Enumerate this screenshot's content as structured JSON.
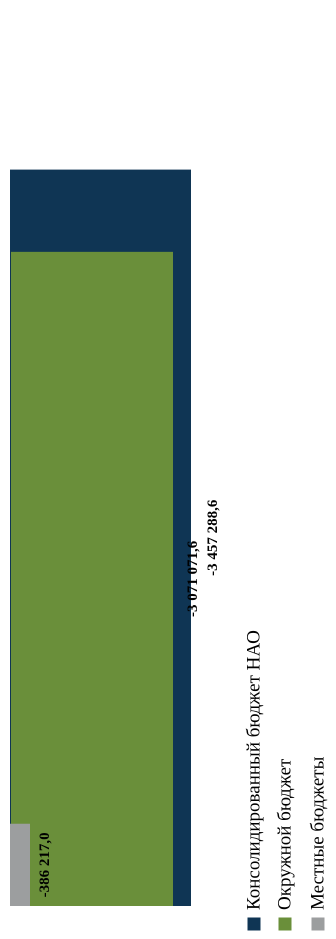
{
  "chart_data": {
    "type": "bar",
    "orientation": "horizontal",
    "title": "",
    "xlabel": "",
    "ylabel": "",
    "grid": false,
    "legend_position": "bottom",
    "xlim": [
      -3500000,
      0
    ],
    "series": [
      {
        "name": "Консолидированный бюджет НАО",
        "value": -3457288.6,
        "label": "-3 457 288,6",
        "color": "#0f3554"
      },
      {
        "name": "Окружной бюджет",
        "value": -3071071.6,
        "label": "-3 071 071,6",
        "color": "#6a8f3a"
      },
      {
        "name": "Местные бюджеты",
        "value": -386217.0,
        "label": "-386 217,0",
        "color": "#9c9e9f"
      }
    ]
  }
}
